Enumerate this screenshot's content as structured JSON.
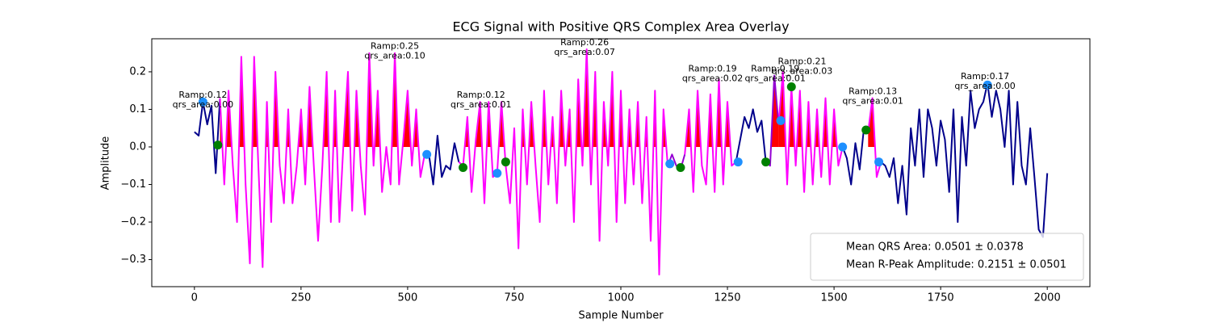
{
  "chart_data": {
    "type": "line",
    "title": "ECG Signal with Positive QRS Complex Area Overlay",
    "x_label": "Sample Number",
    "y_label": "Amplitude",
    "xlim": [
      -100,
      2100
    ],
    "ylim": [
      -0.372,
      0.288
    ],
    "xticks": [
      0,
      250,
      500,
      750,
      1000,
      1250,
      1500,
      1750,
      2000
    ],
    "yticks": [
      {
        "value": -0.3,
        "label": "−0.3"
      },
      {
        "value": -0.2,
        "label": "−0.2"
      },
      {
        "value": -0.1,
        "label": "−0.1"
      },
      {
        "value": 0,
        "label": "0.0"
      },
      {
        "value": 0.1,
        "label": "0.1"
      },
      {
        "value": 0.2,
        "label": "0.2"
      }
    ],
    "fill_color": "#ff0000",
    "series": [
      {
        "color": "#00008b",
        "fill": false,
        "x": [
          0,
          10,
          20,
          30,
          40,
          50,
          60
        ],
        "values": [
          0.04,
          0.03,
          0.12,
          0.06,
          0.11,
          -0.07,
          0.13
        ]
      },
      {
        "color": "#ff00ff",
        "fill": true,
        "x": [
          60,
          70,
          80,
          90,
          100,
          110,
          120,
          130,
          140,
          150,
          160,
          170,
          180,
          190,
          200,
          210,
          220,
          230,
          240,
          250,
          260,
          270,
          280,
          290,
          300,
          310,
          320,
          330,
          340,
          350,
          360,
          370,
          380,
          390,
          400,
          410,
          420,
          430,
          440,
          450,
          460,
          470,
          480,
          490,
          500,
          510,
          520,
          530,
          540
        ],
        "values": [
          0.13,
          -0.1,
          0.15,
          -0.05,
          -0.2,
          0.24,
          -0.1,
          -0.31,
          0.24,
          -0.05,
          -0.32,
          0.12,
          -0.2,
          0.2,
          -0.05,
          -0.15,
          0.1,
          -0.15,
          -0.05,
          0.1,
          -0.1,
          0.16,
          -0.05,
          -0.25,
          -0.05,
          0.2,
          -0.2,
          0.15,
          -0.2,
          0.02,
          0.2,
          -0.17,
          0.15,
          -0.05,
          -0.18,
          0.25,
          -0.05,
          0.15,
          -0.12,
          0.0,
          -0.1,
          0.25,
          -0.1,
          0.02,
          0.15,
          -0.05,
          0.1,
          -0.08,
          -0.02
        ]
      },
      {
        "color": "#00008b",
        "fill": false,
        "x": [
          540,
          550,
          560,
          570,
          580,
          590,
          600,
          610,
          620
        ],
        "values": [
          -0.02,
          -0.02,
          -0.1,
          0.03,
          -0.08,
          -0.05,
          -0.06,
          0.01,
          -0.04
        ]
      },
      {
        "color": "#ff00ff",
        "fill": true,
        "x": [
          620,
          630,
          640,
          650,
          660,
          670,
          680,
          690,
          700,
          710,
          720,
          730,
          740,
          750,
          760,
          770,
          780,
          790,
          800,
          810,
          820,
          830,
          840,
          850,
          860,
          870,
          880,
          890,
          900,
          910,
          920,
          930,
          940,
          950,
          960,
          970,
          980,
          990,
          1000,
          1010,
          1020,
          1030,
          1040,
          1050,
          1060,
          1070,
          1080,
          1090,
          1100,
          1110
        ],
        "values": [
          -0.04,
          -0.05,
          0.08,
          -0.12,
          0.02,
          0.12,
          -0.15,
          0.12,
          -0.08,
          -0.07,
          0.12,
          -0.05,
          -0.15,
          0.05,
          -0.27,
          0.1,
          -0.1,
          0.12,
          -0.05,
          -0.2,
          0.15,
          -0.1,
          0.08,
          -0.15,
          0.15,
          -0.05,
          0.1,
          -0.2,
          0.18,
          -0.05,
          0.26,
          -0.1,
          0.2,
          -0.25,
          0.12,
          -0.05,
          0.2,
          -0.2,
          0.15,
          -0.15,
          0.1,
          -0.1,
          0.12,
          -0.15,
          0.08,
          -0.25,
          0.15,
          -0.34,
          0.1,
          -0.05
        ]
      },
      {
        "color": "#9400d3",
        "fill": true,
        "x": [
          1110,
          1120,
          1130,
          1140,
          1150
        ],
        "values": [
          -0.05,
          -0.02,
          -0.05,
          -0.06,
          -0.02
        ]
      },
      {
        "color": "#ff00ff",
        "fill": true,
        "x": [
          1150,
          1160,
          1170,
          1180,
          1190,
          1200,
          1210,
          1220,
          1230,
          1240,
          1250,
          1260,
          1270
        ],
        "values": [
          -0.02,
          0.1,
          -0.12,
          0.15,
          -0.05,
          -0.1,
          0.14,
          -0.12,
          0.18,
          -0.1,
          0.12,
          -0.05,
          -0.04
        ]
      },
      {
        "color": "#00008b",
        "fill": false,
        "x": [
          1270,
          1280,
          1290,
          1300,
          1310,
          1320,
          1330,
          1340
        ],
        "values": [
          -0.04,
          0.02,
          0.08,
          0.05,
          0.1,
          0.04,
          0.07,
          -0.04
        ]
      },
      {
        "color": "#9400d3",
        "fill": true,
        "x": [
          1340,
          1350,
          1360,
          1370
        ],
        "values": [
          -0.04,
          -0.05,
          0.19,
          0.06
        ]
      },
      {
        "color": "#ff00ff",
        "fill": true,
        "x": [
          1370,
          1380,
          1390,
          1400,
          1410,
          1420,
          1430,
          1440,
          1450,
          1460,
          1470,
          1480,
          1490,
          1500,
          1510,
          1520
        ],
        "values": [
          0.06,
          0.2,
          -0.1,
          0.16,
          -0.05,
          0.15,
          -0.12,
          0.12,
          -0.1,
          0.1,
          -0.08,
          0.13,
          -0.1,
          0.1,
          -0.05,
          0.0
        ]
      },
      {
        "color": "#00008b",
        "fill": false,
        "x": [
          1520,
          1530,
          1540,
          1550,
          1560,
          1570,
          1580
        ],
        "values": [
          0.0,
          -0.03,
          -0.1,
          0.01,
          -0.06,
          0.05,
          0.04
        ]
      },
      {
        "color": "#ff00ff",
        "fill": true,
        "x": [
          1580,
          1590,
          1600,
          1610
        ],
        "values": [
          0.04,
          0.13,
          -0.08,
          -0.04
        ]
      },
      {
        "color": "#00008b",
        "fill": false,
        "x": [
          1610,
          1620,
          1630,
          1640,
          1650,
          1660,
          1670,
          1680,
          1690,
          1700,
          1710,
          1720,
          1730,
          1740,
          1750,
          1760,
          1770,
          1780,
          1790,
          1800,
          1810,
          1820,
          1830,
          1840,
          1850,
          1860,
          1870,
          1880,
          1890,
          1900,
          1910,
          1920,
          1930,
          1940,
          1950,
          1960,
          1970,
          1980,
          1990,
          2000
        ],
        "values": [
          -0.04,
          -0.05,
          -0.08,
          -0.03,
          -0.15,
          -0.05,
          -0.18,
          0.05,
          -0.05,
          0.1,
          -0.08,
          0.1,
          0.05,
          -0.05,
          0.07,
          0.02,
          -0.12,
          0.1,
          -0.2,
          0.08,
          -0.05,
          0.15,
          0.05,
          0.1,
          0.12,
          0.17,
          0.08,
          0.15,
          0.1,
          0.0,
          0.15,
          -0.1,
          0.12,
          -0.05,
          -0.1,
          0.05,
          -0.08,
          -0.22,
          -0.24,
          -0.07
        ]
      }
    ],
    "points": [
      {
        "color": "#1e90ff",
        "x": [
          20,
          545,
          710,
          1115,
          1275,
          1375,
          1520,
          1605,
          1860
        ],
        "values": [
          0.12,
          -0.02,
          -0.07,
          -0.045,
          -0.04,
          0.07,
          0.0,
          -0.04,
          0.165
        ]
      },
      {
        "color": "#008000",
        "x": [
          55,
          630,
          730,
          1140,
          1340,
          1400,
          1575
        ],
        "values": [
          0.005,
          -0.055,
          -0.04,
          -0.055,
          -0.04,
          0.16,
          0.045
        ]
      }
    ],
    "annotations": [
      {
        "ramp_label": "Ramp:0.12",
        "area_label": "qrs_area:0.00",
        "x": 20,
        "y": 0.12
      },
      {
        "ramp_label": "Ramp:0.25",
        "area_label": "qrs_area:0.10",
        "x": 470,
        "y": 0.25
      },
      {
        "ramp_label": "Ramp:0.12",
        "area_label": "qrs_area:0.01",
        "x": 672,
        "y": 0.12
      },
      {
        "ramp_label": "Ramp:0.26",
        "area_label": "qrs_area:0.07",
        "x": 915,
        "y": 0.26
      },
      {
        "ramp_label": "Ramp:0.19",
        "area_label": "qrs_area:0.02",
        "x": 1215,
        "y": 0.19
      },
      {
        "ramp_label": "Ramp:0.19",
        "area_label": "qrs_area:0.01",
        "x": 1362,
        "y": 0.19
      },
      {
        "ramp_label": "Ramp:0.21",
        "area_label": "qrs_area:0.03",
        "x": 1425,
        "y": 0.21
      },
      {
        "ramp_label": "Ramp:0.13",
        "area_label": "qrs_area:0.01",
        "x": 1591,
        "y": 0.13
      },
      {
        "ramp_label": "Ramp:0.17",
        "area_label": "qrs_area:0.00",
        "x": 1854,
        "y": 0.17
      }
    ],
    "legend": {
      "loc": "lower right",
      "entries": [
        "Mean QRS Area: 0.0501 ± 0.0378",
        "Mean R-Peak Amplitude: 0.2151 ± 0.0501"
      ]
    }
  }
}
